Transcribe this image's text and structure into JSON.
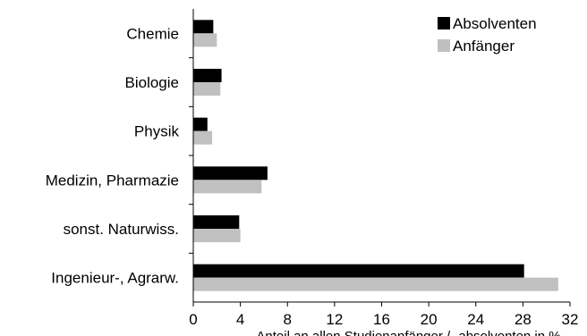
{
  "chart_data": {
    "type": "bar",
    "orientation": "horizontal",
    "categories": [
      "Chemie",
      "Biologie",
      "Physik",
      "Medizin, Pharmazie",
      "sonst. Naturwiss.",
      "Ingenieur-, Agrarw."
    ],
    "series": [
      {
        "name": "Absolventen",
        "color": "#000000",
        "values": [
          1.7,
          2.4,
          1.2,
          6.3,
          3.9,
          28.1
        ]
      },
      {
        "name": "Anfänger",
        "color": "#c0c0c0",
        "values": [
          2.0,
          2.3,
          1.6,
          5.8,
          4.0,
          31.0
        ]
      }
    ],
    "xticks": [
      "0",
      "4",
      "8",
      "12",
      "16",
      "20",
      "24",
      "28",
      "32"
    ],
    "xlim": [
      0,
      32
    ],
    "xlabel": "Anteil an allen Studienanfänger / -absolventen in %",
    "legend_position": "top-right",
    "grid": false
  }
}
